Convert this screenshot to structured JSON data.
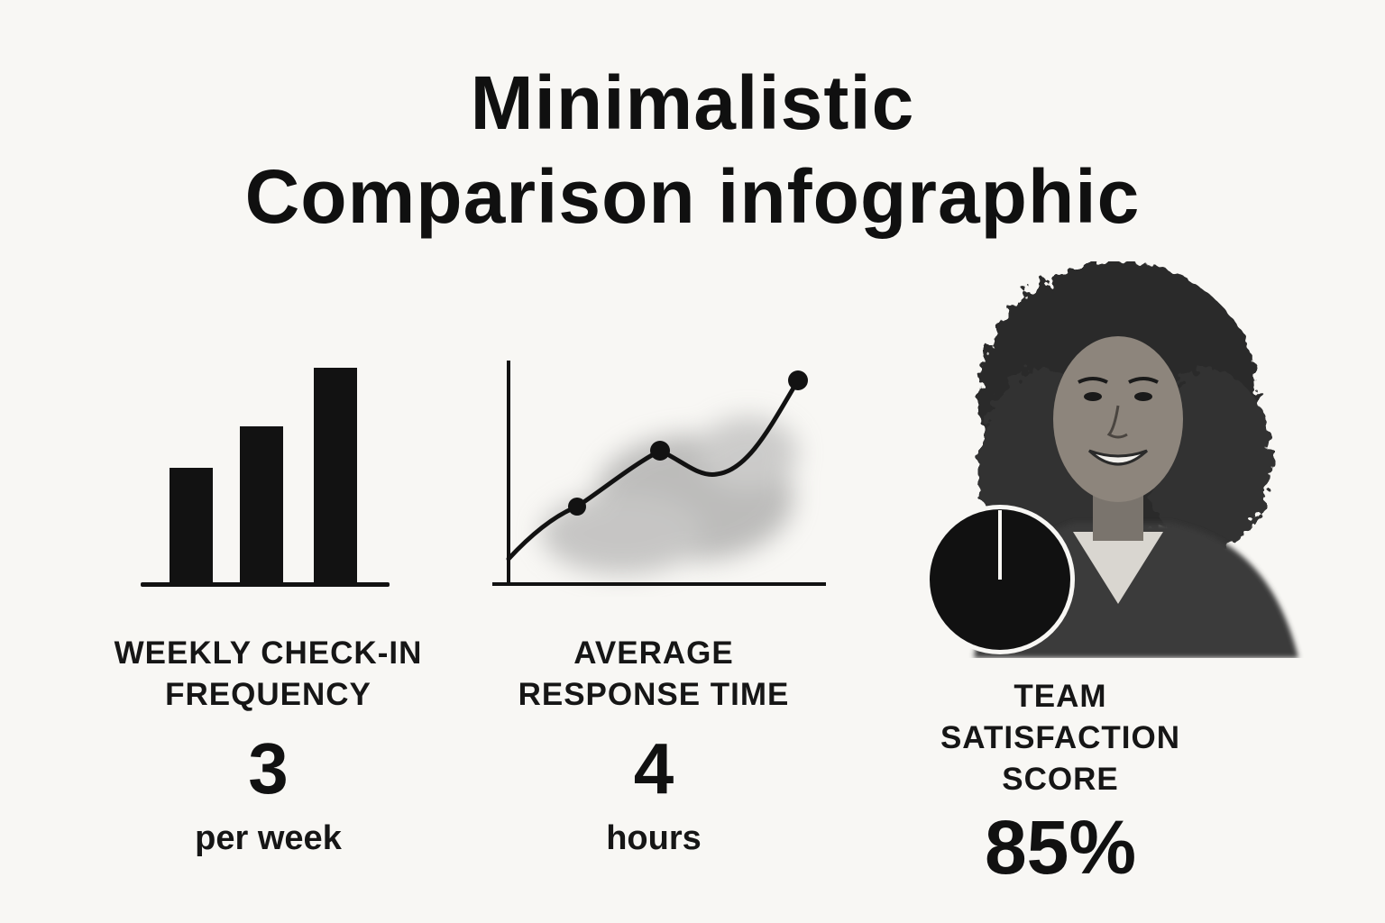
{
  "title": {
    "line1": "Minimalistic",
    "line2": "Comparison infographic"
  },
  "metrics": [
    {
      "label_line1": "WEEKLY CHECK-IN",
      "label_line2": "FREQUENCY",
      "value": "3",
      "unit": "per week",
      "icon": "bar-chart-icon",
      "chart": {
        "type": "bar",
        "values": [
          1,
          1.6,
          2.3
        ]
      }
    },
    {
      "label_line1": "AVERAGE",
      "label_line2": "RESPONSE TIME",
      "value": "4",
      "unit": "hours",
      "icon": "line-chart-icon",
      "chart": {
        "type": "line",
        "points": [
          0,
          1,
          2,
          1.6,
          3
        ]
      }
    },
    {
      "label_line1": "TEAM",
      "label_line2": "SATISFACTION",
      "label_line3": "SCORE",
      "value": "85%",
      "icon": "pie-chart-icon",
      "image": "smiling-woman-portrait"
    }
  ],
  "colors": {
    "background": "#f8f7f4",
    "ink": "#111111",
    "wash": "#9a9a9a"
  }
}
